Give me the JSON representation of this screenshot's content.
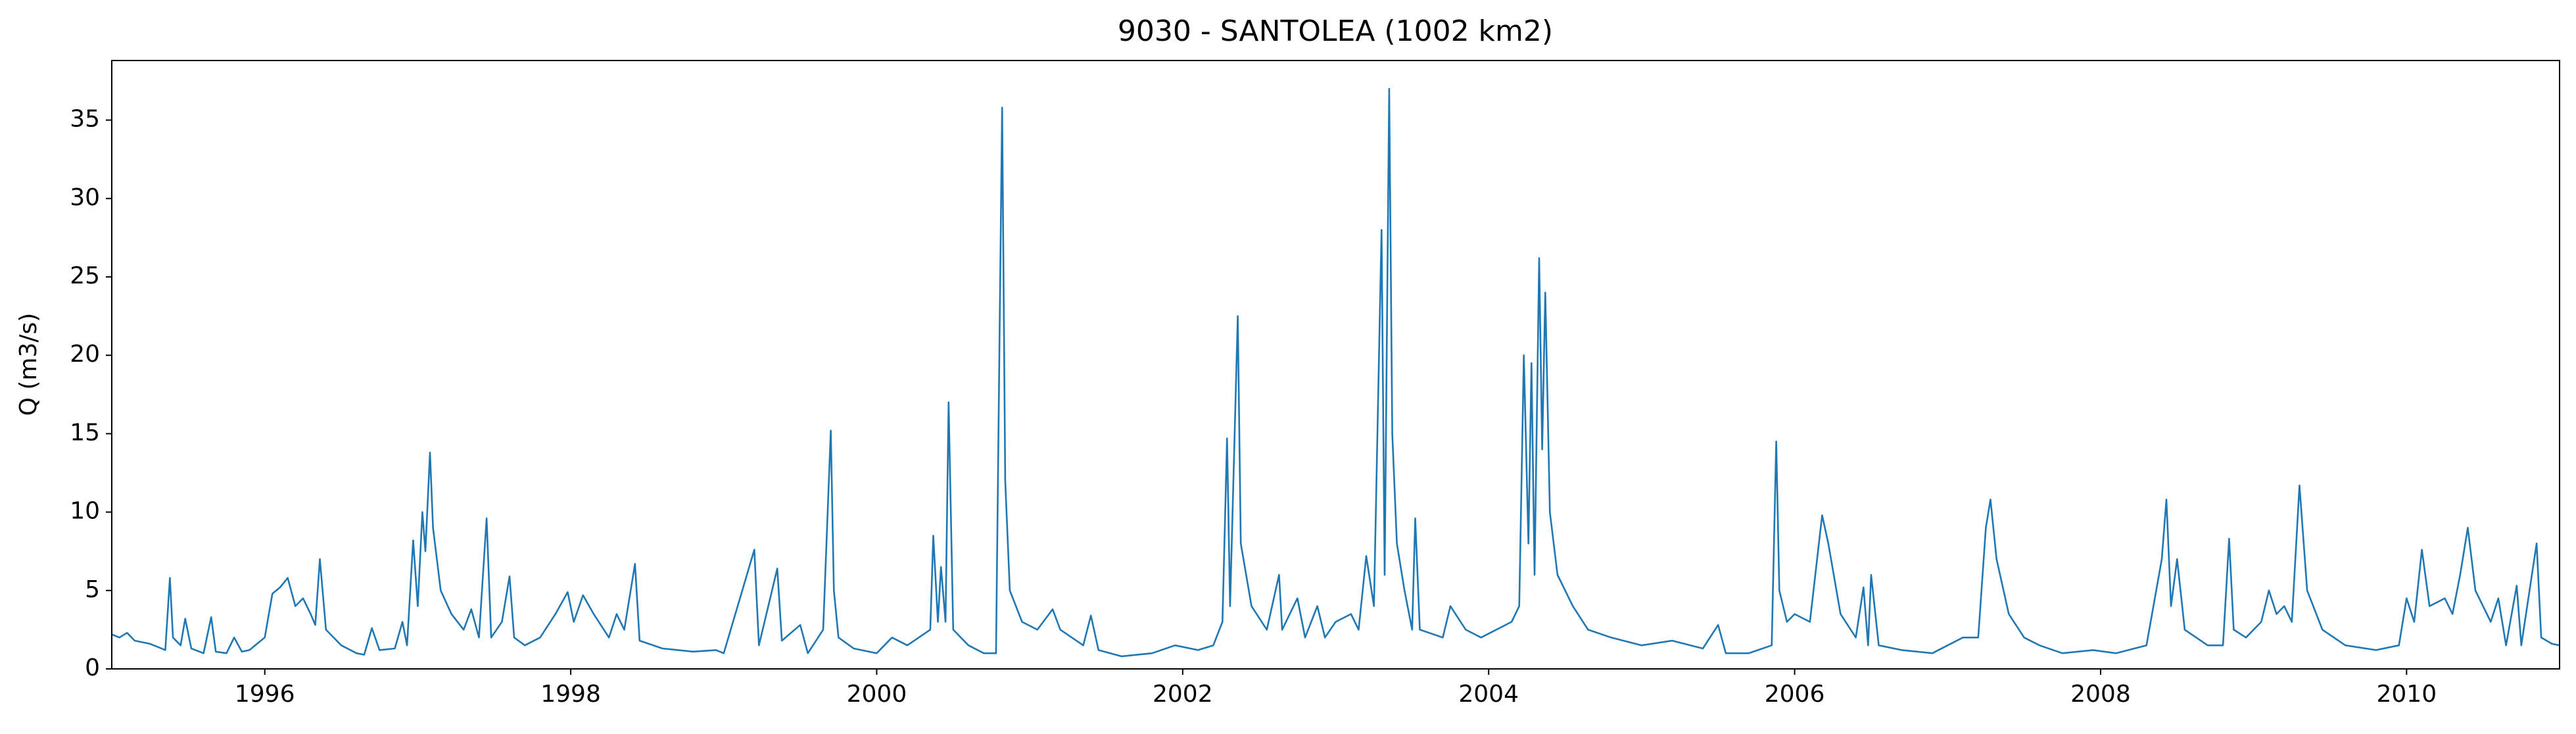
{
  "chart_data": {
    "type": "line",
    "title": "9030 - SANTOLEA (1002 km2)",
    "y_label": "Q (m3/s)",
    "color": "#1f77b4",
    "grid": false,
    "x": [
      1995.0,
      1995.05,
      1995.1,
      1995.15,
      1995.25,
      1995.3,
      1995.35,
      1995.38,
      1995.4,
      1995.45,
      1995.48,
      1995.52,
      1995.6,
      1995.65,
      1995.68,
      1995.75,
      1995.8,
      1995.85,
      1995.9,
      1996.0,
      1996.05,
      1996.1,
      1996.15,
      1996.2,
      1996.25,
      1996.3,
      1996.33,
      1996.36,
      1996.4,
      1996.5,
      1996.6,
      1996.65,
      1996.7,
      1996.75,
      1996.85,
      1996.9,
      1996.93,
      1996.97,
      1997.0,
      1997.03,
      1997.05,
      1997.08,
      1997.1,
      1997.15,
      1997.22,
      1997.3,
      1997.35,
      1997.4,
      1997.45,
      1997.48,
      1997.55,
      1997.6,
      1997.63,
      1997.7,
      1997.8,
      1997.9,
      1997.98,
      1998.02,
      1998.08,
      1998.15,
      1998.25,
      1998.3,
      1998.35,
      1998.42,
      1998.45,
      1998.6,
      1998.8,
      1998.95,
      1999.0,
      1999.2,
      1999.23,
      1999.35,
      1999.38,
      1999.5,
      1999.55,
      1999.65,
      1999.7,
      1999.72,
      1999.75,
      1999.85,
      2000.0,
      2000.1,
      2000.2,
      2000.35,
      2000.37,
      2000.4,
      2000.42,
      2000.45,
      2000.47,
      2000.5,
      2000.6,
      2000.7,
      2000.78,
      2000.82,
      2000.84,
      2000.87,
      2000.95,
      2001.05,
      2001.15,
      2001.2,
      2001.35,
      2001.4,
      2001.45,
      2001.6,
      2001.8,
      2001.95,
      2002.1,
      2002.2,
      2002.26,
      2002.29,
      2002.31,
      2002.36,
      2002.38,
      2002.45,
      2002.55,
      2002.63,
      2002.65,
      2002.75,
      2002.8,
      2002.88,
      2002.93,
      2003.0,
      2003.1,
      2003.15,
      2003.2,
      2003.25,
      2003.3,
      2003.32,
      2003.35,
      2003.37,
      2003.4,
      2003.45,
      2003.5,
      2003.52,
      2003.55,
      2003.7,
      2003.75,
      2003.85,
      2003.95,
      2004.15,
      2004.2,
      2004.23,
      2004.26,
      2004.28,
      2004.3,
      2004.33,
      2004.35,
      2004.37,
      2004.4,
      2004.45,
      2004.55,
      2004.65,
      2004.8,
      2005.0,
      2005.2,
      2005.4,
      2005.5,
      2005.55,
      2005.7,
      2005.85,
      2005.88,
      2005.9,
      2005.95,
      2006.0,
      2006.1,
      2006.18,
      2006.22,
      2006.3,
      2006.4,
      2006.45,
      2006.48,
      2006.5,
      2006.55,
      2006.7,
      2006.9,
      2007.1,
      2007.2,
      2007.25,
      2007.28,
      2007.32,
      2007.4,
      2007.5,
      2007.6,
      2007.75,
      2007.95,
      2008.1,
      2008.3,
      2008.4,
      2008.43,
      2008.46,
      2008.5,
      2008.55,
      2008.7,
      2008.8,
      2008.84,
      2008.87,
      2008.95,
      2009.05,
      2009.1,
      2009.15,
      2009.2,
      2009.25,
      2009.3,
      2009.35,
      2009.45,
      2009.6,
      2009.8,
      2009.95,
      2010.0,
      2010.05,
      2010.1,
      2010.15,
      2010.25,
      2010.3,
      2010.35,
      2010.4,
      2010.45,
      2010.55,
      2010.6,
      2010.65,
      2010.72,
      2010.75,
      2010.85,
      2010.88,
      2010.95,
      2011.0
    ],
    "values": [
      2.2,
      2.0,
      2.3,
      1.8,
      1.6,
      1.4,
      1.2,
      5.8,
      2.0,
      1.5,
      3.2,
      1.3,
      1.0,
      3.3,
      1.1,
      1.0,
      2.0,
      1.1,
      1.2,
      2.0,
      4.8,
      5.2,
      5.8,
      4.0,
      4.5,
      3.5,
      2.8,
      7.0,
      2.5,
      1.5,
      1.0,
      0.9,
      2.6,
      1.2,
      1.3,
      3.0,
      1.5,
      8.2,
      4.0,
      10.0,
      7.5,
      13.8,
      9.0,
      5.0,
      3.5,
      2.5,
      3.8,
      2.0,
      9.6,
      2.0,
      3.0,
      5.9,
      2.0,
      1.5,
      2.0,
      3.5,
      4.9,
      3.0,
      4.7,
      3.5,
      2.0,
      3.5,
      2.5,
      6.7,
      1.8,
      1.3,
      1.1,
      1.2,
      1.0,
      7.6,
      1.5,
      6.4,
      1.8,
      2.8,
      1.0,
      2.5,
      15.2,
      5.0,
      2.0,
      1.3,
      1.0,
      2.0,
      1.5,
      2.5,
      8.5,
      3.0,
      6.5,
      3.0,
      17.0,
      2.5,
      1.5,
      1.0,
      1.0,
      35.8,
      12.0,
      5.0,
      3.0,
      2.5,
      3.8,
      2.5,
      1.5,
      3.4,
      1.2,
      0.8,
      1.0,
      1.5,
      1.2,
      1.5,
      3.0,
      14.7,
      4.0,
      22.5,
      8.0,
      4.0,
      2.5,
      6.0,
      2.5,
      4.5,
      2.0,
      4.0,
      2.0,
      3.0,
      3.5,
      2.5,
      7.2,
      4.0,
      28.0,
      6.0,
      37.0,
      15.0,
      8.0,
      5.0,
      2.5,
      9.6,
      2.5,
      2.0,
      4.0,
      2.5,
      2.0,
      3.0,
      4.0,
      20.0,
      8.0,
      19.5,
      6.0,
      26.2,
      14.0,
      24.0,
      10.0,
      6.0,
      4.0,
      2.5,
      2.0,
      1.5,
      1.8,
      1.3,
      2.8,
      1.0,
      1.0,
      1.5,
      14.5,
      5.0,
      3.0,
      3.5,
      3.0,
      9.8,
      8.0,
      3.5,
      2.0,
      5.2,
      1.5,
      6.0,
      1.5,
      1.2,
      1.0,
      2.0,
      2.0,
      9.0,
      10.8,
      7.0,
      3.5,
      2.0,
      1.5,
      1.0,
      1.2,
      1.0,
      1.5,
      7.0,
      10.8,
      4.0,
      7.0,
      2.5,
      1.5,
      1.5,
      8.3,
      2.5,
      2.0,
      3.0,
      5.0,
      3.5,
      4.0,
      3.0,
      11.7,
      5.0,
      2.5,
      1.5,
      1.2,
      1.5,
      4.5,
      3.0,
      7.6,
      4.0,
      4.5,
      3.5,
      6.0,
      9.0,
      5.0,
      3.0,
      4.5,
      1.5,
      5.3,
      1.5,
      8.0,
      2.0,
      1.6,
      1.5
    ],
    "xlim": [
      1995.0,
      2011.0
    ],
    "xticks": [
      1996,
      1998,
      2000,
      2002,
      2004,
      2006,
      2008,
      2010
    ],
    "ylim": [
      0,
      38.8
    ],
    "yticks": [
      0,
      5,
      10,
      15,
      20,
      25,
      30,
      35
    ]
  }
}
